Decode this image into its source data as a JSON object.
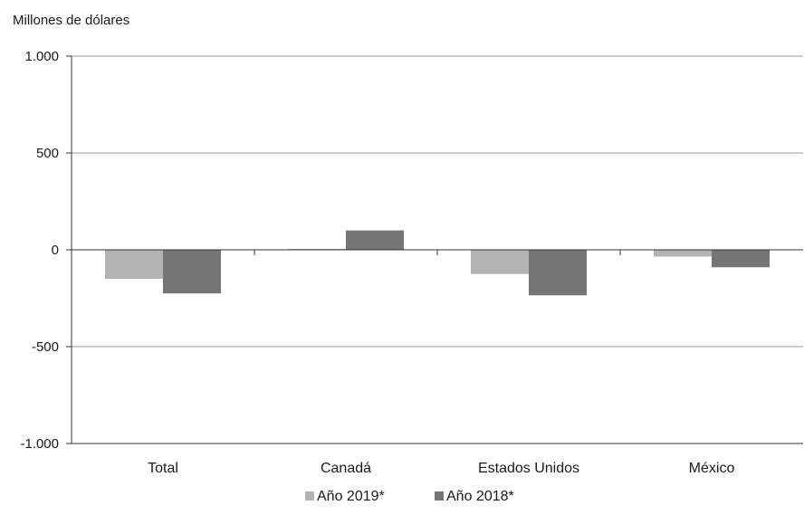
{
  "chart_data": {
    "type": "bar",
    "title": "",
    "ylabel": "Millones de dólares",
    "xlabel": "",
    "categories": [
      "Total",
      "Canadá",
      "Estados Unidos",
      "México"
    ],
    "series": [
      {
        "name": "Año 2019*",
        "color": "#b3b3b3",
        "values": [
          -150,
          5,
          -125,
          -35
        ]
      },
      {
        "name": "Año 2018*",
        "color": "#757575",
        "values": [
          -225,
          100,
          -235,
          -90
        ]
      }
    ],
    "ylim": [
      -1000,
      1000
    ],
    "yticks": [
      1000,
      500,
      0,
      -500,
      -1000
    ],
    "ytick_labels": [
      "1.000",
      "500",
      "0",
      "-500",
      "-1.000"
    ],
    "grid": true,
    "legend": "bottom-center"
  }
}
